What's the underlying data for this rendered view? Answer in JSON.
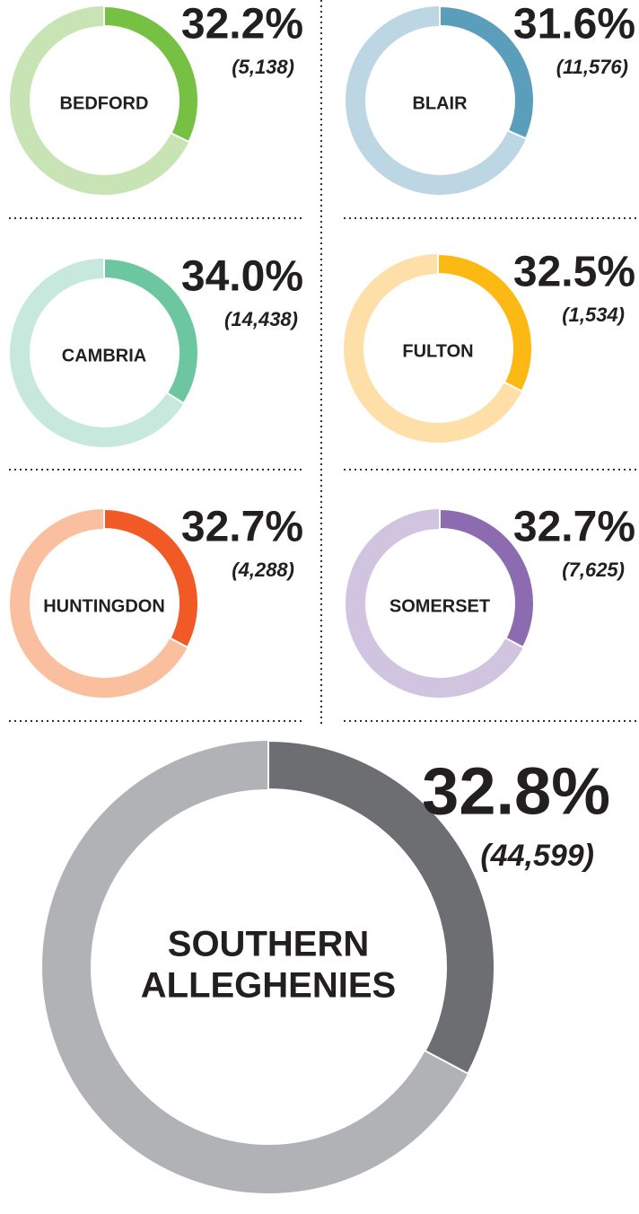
{
  "chart_data": [
    {
      "type": "donut",
      "title": "BEDFORD",
      "values": [
        32.2
      ],
      "value_labels": [
        "32.2%"
      ],
      "subtitle": "(5,138)",
      "color": "#76c043",
      "track_color": "#c9e4b4"
    },
    {
      "type": "donut",
      "title": "BLAIR",
      "values": [
        31.6
      ],
      "value_labels": [
        "31.6%"
      ],
      "subtitle": "(11,576)",
      "color": "#5b9ebb",
      "track_color": "#bcd6e4"
    },
    {
      "type": "donut",
      "title": "CAMBRIA",
      "values": [
        34.0
      ],
      "value_labels": [
        "34.0%"
      ],
      "subtitle": "(14,438)",
      "color": "#6cc6a0",
      "track_color": "#c7e8dc"
    },
    {
      "type": "donut",
      "title": "FULTON",
      "values": [
        32.5
      ],
      "value_labels": [
        "32.5%"
      ],
      "subtitle": "(1,534)",
      "color": "#fdb913",
      "track_color": "#fedfa8"
    },
    {
      "type": "donut",
      "title": "HUNTINGDON",
      "values": [
        32.7
      ],
      "value_labels": [
        "32.7%"
      ],
      "subtitle": "(4,288)",
      "color": "#f15a24",
      "track_color": "#f9bf9e"
    },
    {
      "type": "donut",
      "title": "SOMERSET",
      "values": [
        32.7
      ],
      "value_labels": [
        "32.7%"
      ],
      "subtitle": "(7,625)",
      "color": "#8c6bb1",
      "track_color": "#d1c4e0"
    },
    {
      "type": "donut",
      "title_lines": [
        "SOUTHERN",
        "ALLEGHENIES"
      ],
      "values": [
        32.8
      ],
      "value_labels": [
        "32.8%"
      ],
      "subtitle": "(44,599)",
      "color": "#6d6e71",
      "track_color": "#b1b2b5"
    }
  ]
}
